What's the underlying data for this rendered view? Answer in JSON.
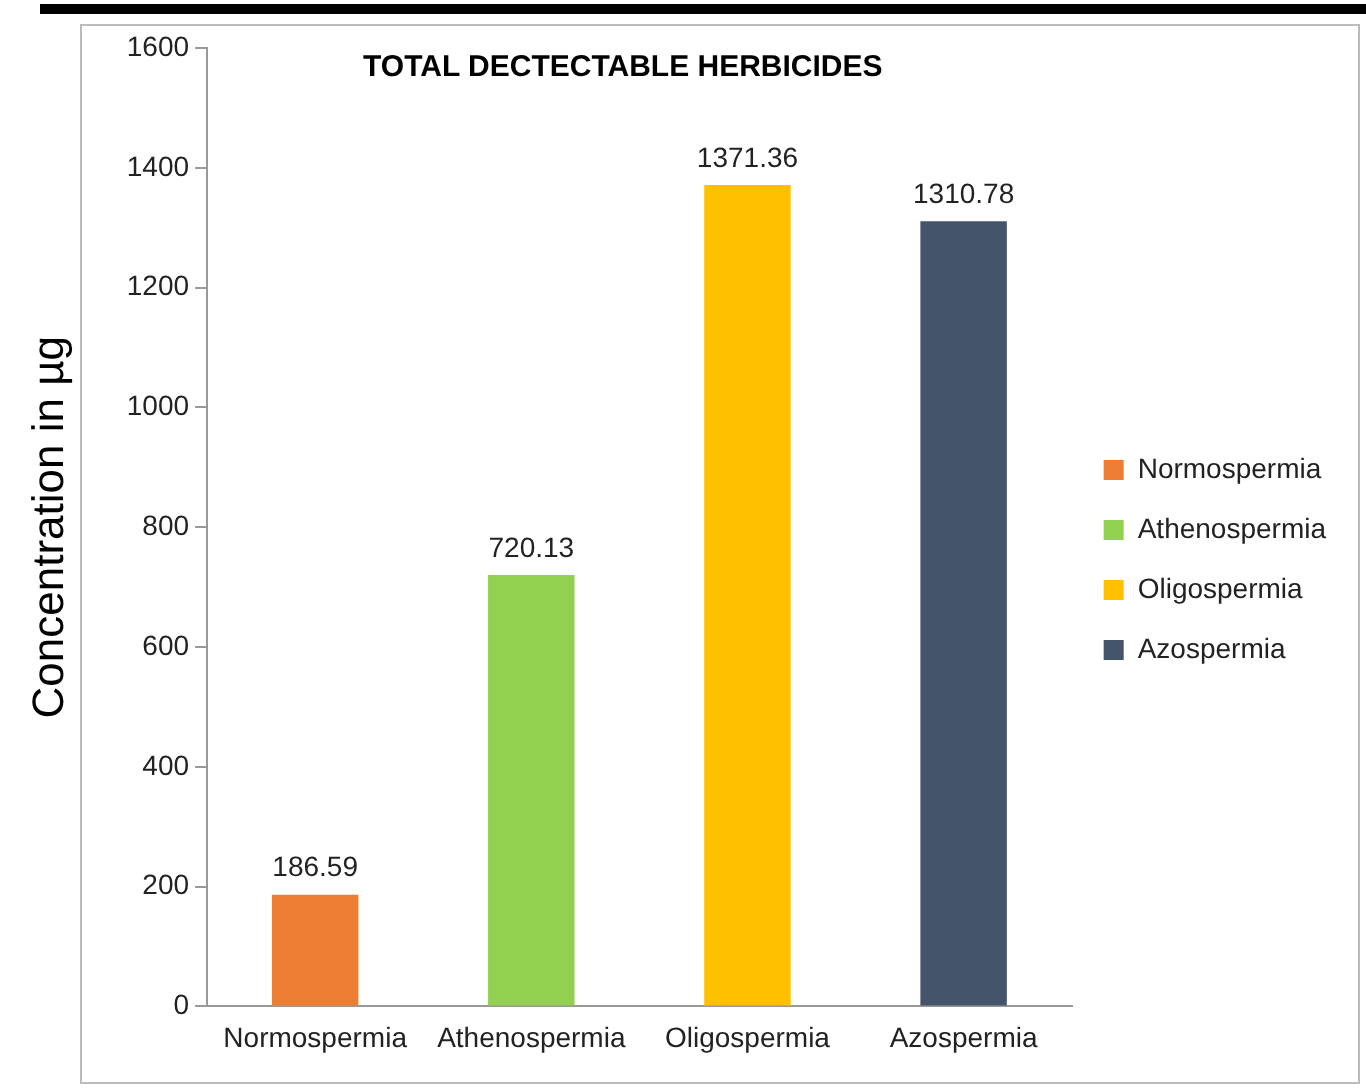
{
  "chart_data": {
    "type": "bar",
    "title": "TOTAL DECTECTABLE HERBICIDES",
    "ylabel": "Concentration in µg",
    "categories": [
      "Normospermia",
      "Athenospermia",
      "Oligospermia",
      "Azospermia"
    ],
    "series": [
      {
        "name": "Normospermia",
        "color": "#ed7d31",
        "values": [
          186.59,
          null,
          null,
          null
        ]
      },
      {
        "name": "Athenospermia",
        "color": "#92d050",
        "values": [
          null,
          720.13,
          null,
          null
        ]
      },
      {
        "name": "Oligospermia",
        "color": "#ffc000",
        "values": [
          null,
          null,
          1371.36,
          null
        ]
      },
      {
        "name": "Azospermia",
        "color": "#44546a",
        "values": [
          null,
          null,
          null,
          1310.78
        ]
      }
    ],
    "ylim": [
      0,
      1600
    ],
    "yticks": [
      0,
      200,
      400,
      600,
      800,
      1000,
      1200,
      1400,
      1600
    ],
    "data_labels": true,
    "legend": "right",
    "grid": false
  }
}
